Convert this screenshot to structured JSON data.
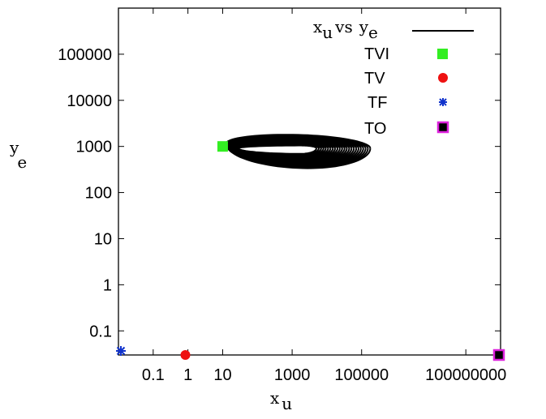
{
  "chart_data": {
    "type": "scatter",
    "title": "",
    "xlabel": {
      "base": "x",
      "sub": "u"
    },
    "ylabel": {
      "base": "y",
      "sub": "e"
    },
    "x_scale": "log",
    "y_scale": "log",
    "xlim": [
      0.01,
      1000000000
    ],
    "ylim": [
      0.03,
      1000000
    ],
    "x_ticks": [
      "0.1",
      "1",
      "10",
      "1000",
      "100000",
      "100000000"
    ],
    "y_ticks": [
      "0.1",
      "1",
      "10",
      "100",
      "1000",
      "10000",
      "100000"
    ],
    "grid": false,
    "legend_position": "top-right",
    "series": [
      {
        "name": "x_u vs y_e",
        "legend_label": {
          "x": "x",
          "x_sub": "u",
          "vs": "vs",
          "y": "y",
          "y_sub": "e"
        },
        "kind": "line",
        "color": "#000000",
        "description_points": {
          "center": [
            1000,
            1000
          ],
          "x_range": [
            1,
            10000
          ],
          "y_range": [
            300,
            1800
          ]
        }
      },
      {
        "name": "TVI",
        "kind": "marker",
        "marker": "square",
        "color": "#33ee22",
        "points": [
          [
            10,
            1000
          ]
        ]
      },
      {
        "name": "TV",
        "kind": "marker",
        "marker": "circle",
        "color": "#ee1111",
        "points": [
          [
            0.8,
            0.03
          ]
        ]
      },
      {
        "name": "TF",
        "kind": "marker",
        "marker": "asterisk",
        "color": "#1133cc",
        "points": [
          [
            0.01,
            0.03
          ]
        ]
      },
      {
        "name": "TO",
        "kind": "marker",
        "marker": "square-outlined",
        "color": "#000000",
        "edge_color": "#dd22dd",
        "points": [
          [
            1000000000,
            0.03
          ]
        ]
      }
    ]
  }
}
